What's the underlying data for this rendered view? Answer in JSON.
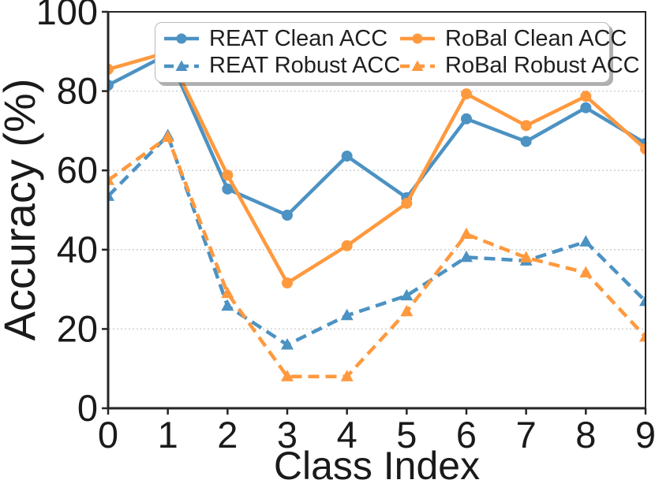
{
  "chart_data": {
    "type": "line",
    "title": "",
    "xlabel": "Class Index",
    "ylabel": "Accuracy (%)",
    "x": [
      0,
      1,
      2,
      3,
      4,
      5,
      6,
      7,
      8,
      9
    ],
    "xlim": [
      0,
      9
    ],
    "ylim": [
      0,
      100
    ],
    "yticks": [
      0,
      20,
      40,
      60,
      80,
      100
    ],
    "grid": "horizontal-dotted",
    "grid_color": "#c9c9c9",
    "axis_color": "#262626",
    "tick_label_color": "#1a1a1a",
    "legend_position": "top-center",
    "series": [
      {
        "name": "REAT Clean ACC",
        "color": "#4c92c3",
        "style": "solid",
        "marker": "circle",
        "values": [
          81.5,
          89.3,
          55.3,
          48.7,
          63.6,
          53.1,
          73.0,
          67.3,
          75.8,
          66.8
        ]
      },
      {
        "name": "REAT Robust ACC",
        "color": "#4c92c3",
        "style": "dashed",
        "marker": "triangle",
        "values": [
          53.5,
          68.8,
          25.8,
          16.0,
          23.4,
          28.4,
          38.1,
          37.2,
          42.0,
          27.0
        ]
      },
      {
        "name": "RoBal Clean ACC",
        "color": "#ff993e",
        "style": "solid",
        "marker": "circle",
        "values": [
          85.5,
          89.8,
          58.8,
          31.6,
          41.0,
          51.7,
          79.3,
          71.3,
          78.7,
          65.4
        ]
      },
      {
        "name": "RoBal Robust ACC",
        "color": "#ff993e",
        "style": "dashed",
        "marker": "triangle",
        "values": [
          57.5,
          68.4,
          29.0,
          8.0,
          8.0,
          24.4,
          43.9,
          38.0,
          34.2,
          18.0
        ]
      }
    ]
  }
}
